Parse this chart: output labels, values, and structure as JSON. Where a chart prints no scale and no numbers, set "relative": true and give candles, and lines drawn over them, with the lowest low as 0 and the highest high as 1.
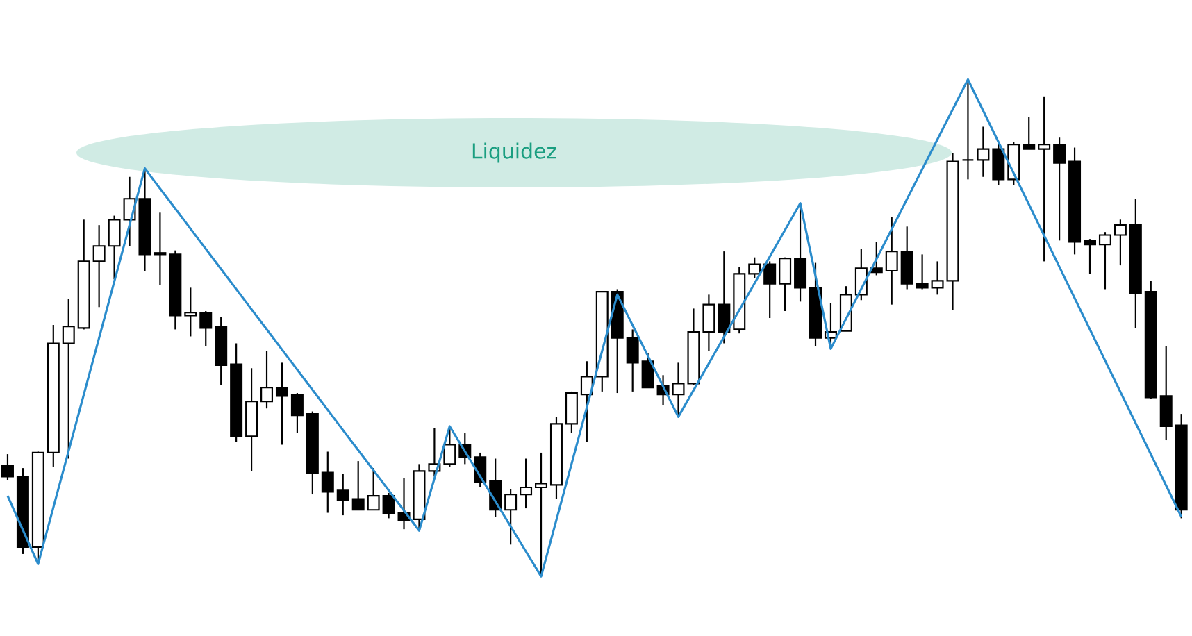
{
  "chart_data": {
    "type": "candlestick",
    "relative": true,
    "categories": [
      null,
      null,
      null,
      null,
      null,
      null,
      null,
      null,
      null,
      null,
      null,
      null,
      null,
      null,
      null,
      null,
      null,
      null,
      null,
      null,
      null,
      null,
      null,
      null,
      null,
      null,
      null,
      null,
      null,
      null,
      null,
      null,
      null,
      null,
      null,
      null,
      null,
      null,
      null,
      null,
      null,
      null,
      null,
      null,
      null,
      null,
      null,
      null,
      null,
      null,
      null,
      null,
      null,
      null,
      null,
      null,
      null,
      null,
      null,
      null,
      null,
      null,
      null,
      null,
      null,
      null,
      null,
      null,
      null,
      null,
      null,
      null,
      null,
      null,
      null,
      null,
      null,
      null
    ],
    "ohlc": [
      [
        0.223,
        0.246,
        0.193,
        0.201
      ],
      [
        0.201,
        0.218,
        0.045,
        0.059
      ],
      [
        0.059,
        0.251,
        0.034,
        0.249
      ],
      [
        0.249,
        0.506,
        0.221,
        0.469
      ],
      [
        0.469,
        0.559,
        0.237,
        0.503
      ],
      [
        0.5,
        0.718,
        0.497,
        0.634
      ],
      [
        0.634,
        0.707,
        0.542,
        0.665
      ],
      [
        0.665,
        0.726,
        0.598,
        0.718
      ],
      [
        0.718,
        0.804,
        0.665,
        0.76
      ],
      [
        0.76,
        0.818,
        0.615,
        0.648
      ],
      [
        0.651,
        0.732,
        0.587,
        0.648
      ],
      [
        0.648,
        0.656,
        0.497,
        0.525
      ],
      [
        0.525,
        0.581,
        0.483,
        0.531
      ],
      [
        0.531,
        0.534,
        0.464,
        0.5
      ],
      [
        0.503,
        0.522,
        0.385,
        0.425
      ],
      [
        0.427,
        0.469,
        0.271,
        0.282
      ],
      [
        0.282,
        0.419,
        0.212,
        0.352
      ],
      [
        0.352,
        0.453,
        0.338,
        0.38
      ],
      [
        0.38,
        0.43,
        0.265,
        0.363
      ],
      [
        0.366,
        0.369,
        0.288,
        0.324
      ],
      [
        0.327,
        0.332,
        0.165,
        0.207
      ],
      [
        0.209,
        0.251,
        0.128,
        0.17
      ],
      [
        0.173,
        0.207,
        0.123,
        0.154
      ],
      [
        0.156,
        0.232,
        0.134,
        0.134
      ],
      [
        0.134,
        0.218,
        0.134,
        0.162
      ],
      [
        0.162,
        0.168,
        0.117,
        0.126
      ],
      [
        0.128,
        0.198,
        0.095,
        0.112
      ],
      [
        0.115,
        0.226,
        0.092,
        0.212
      ],
      [
        0.212,
        0.299,
        0.201,
        0.226
      ],
      [
        0.226,
        0.302,
        0.221,
        0.265
      ],
      [
        0.265,
        0.288,
        0.226,
        0.24
      ],
      [
        0.24,
        0.249,
        0.179,
        0.19
      ],
      [
        0.193,
        0.237,
        0.12,
        0.134
      ],
      [
        0.134,
        0.176,
        0.064,
        0.165
      ],
      [
        0.165,
        0.237,
        0.137,
        0.179
      ],
      [
        0.179,
        0.249,
        0.0,
        0.187
      ],
      [
        0.184,
        0.321,
        0.156,
        0.307
      ],
      [
        0.307,
        0.372,
        0.288,
        0.369
      ],
      [
        0.366,
        0.433,
        0.271,
        0.402
      ],
      [
        0.402,
        0.573,
        0.372,
        0.573
      ],
      [
        0.573,
        0.578,
        0.369,
        0.48
      ],
      [
        0.48,
        0.497,
        0.372,
        0.43
      ],
      [
        0.433,
        0.45,
        0.38,
        0.38
      ],
      [
        0.383,
        0.405,
        0.344,
        0.366
      ],
      [
        0.366,
        0.43,
        0.321,
        0.388
      ],
      [
        0.388,
        0.539,
        0.385,
        0.492
      ],
      [
        0.492,
        0.567,
        0.453,
        0.547
      ],
      [
        0.547,
        0.654,
        0.469,
        0.492
      ],
      [
        0.497,
        0.623,
        0.489,
        0.609
      ],
      [
        0.609,
        0.642,
        0.601,
        0.628
      ],
      [
        0.628,
        0.634,
        0.52,
        0.589
      ],
      [
        0.589,
        0.642,
        0.534,
        0.64
      ],
      [
        0.64,
        0.751,
        0.553,
        0.581
      ],
      [
        0.581,
        0.631,
        0.464,
        0.48
      ],
      [
        0.48,
        0.55,
        0.461,
        0.492
      ],
      [
        0.494,
        0.584,
        0.494,
        0.567
      ],
      [
        0.567,
        0.659,
        0.556,
        0.62
      ],
      [
        0.62,
        0.673,
        0.606,
        0.612
      ],
      [
        0.615,
        0.723,
        0.547,
        0.654
      ],
      [
        0.654,
        0.704,
        0.578,
        0.589
      ],
      [
        0.589,
        0.648,
        0.578,
        0.581
      ],
      [
        0.581,
        0.634,
        0.567,
        0.595
      ],
      [
        0.595,
        0.852,
        0.536,
        0.835
      ],
      [
        0.838,
        1.0,
        0.799,
        0.838
      ],
      [
        0.838,
        0.905,
        0.804,
        0.86
      ],
      [
        0.86,
        0.874,
        0.788,
        0.799
      ],
      [
        0.799,
        0.874,
        0.788,
        0.869
      ],
      [
        0.869,
        0.925,
        0.86,
        0.86
      ],
      [
        0.86,
        0.966,
        0.634,
        0.869
      ],
      [
        0.869,
        0.883,
        0.676,
        0.832
      ],
      [
        0.835,
        0.863,
        0.648,
        0.673
      ],
      [
        0.676,
        0.679,
        0.609,
        0.668
      ],
      [
        0.668,
        0.693,
        0.578,
        0.687
      ],
      [
        0.687,
        0.718,
        0.626,
        0.707
      ],
      [
        0.707,
        0.76,
        0.5,
        0.57
      ],
      [
        0.573,
        0.595,
        0.358,
        0.36
      ],
      [
        0.363,
        0.464,
        0.274,
        0.302
      ],
      [
        0.304,
        0.327,
        0.117,
        0.134
      ]
    ],
    "series": [
      {
        "type": "line",
        "color": "#2b8ccc",
        "values": [
          0.162,
          null,
          0.025,
          null,
          null,
          null,
          null,
          null,
          null,
          0.821,
          null,
          null,
          null,
          null,
          null,
          null,
          null,
          null,
          null,
          null,
          null,
          null,
          null,
          null,
          null,
          null,
          null,
          0.092,
          null,
          0.302,
          null,
          null,
          null,
          null,
          null,
          0.0,
          null,
          null,
          null,
          null,
          0.567,
          null,
          null,
          null,
          0.321,
          null,
          null,
          null,
          null,
          null,
          null,
          null,
          0.751,
          null,
          0.458,
          null,
          null,
          null,
          null,
          null,
          null,
          null,
          null,
          1.0,
          null,
          null,
          null,
          null,
          null,
          null,
          null,
          null,
          null,
          null,
          null,
          null,
          null,
          0.12
        ]
      }
    ],
    "annotations": [
      "Liquidez"
    ]
  }
}
